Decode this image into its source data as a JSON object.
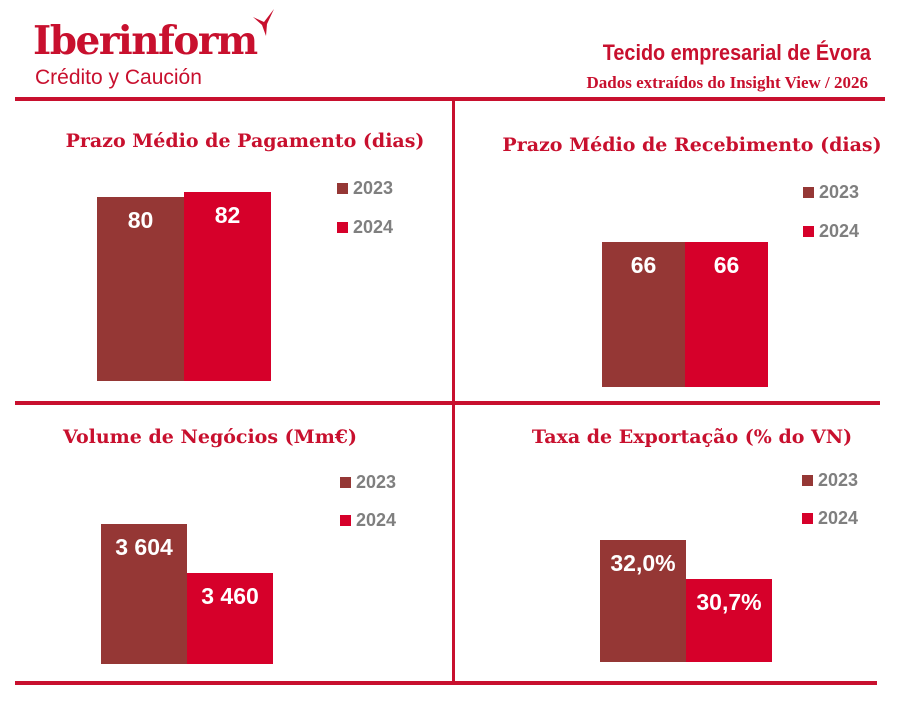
{
  "header": {
    "logo": "Iberinform",
    "logo_sub": "Crédito y Caución",
    "title": "Tecido empresarial de Évora",
    "subtitle": "Dados extraídos do Insight View / 2026"
  },
  "colors": {
    "brand": "#c8102e",
    "s2023": "#953735",
    "s2024": "#d6002a"
  },
  "chart_data": [
    {
      "type": "bar",
      "title": "Prazo Médio de Pagamento (dias)",
      "categories": [
        "2023",
        "2024"
      ],
      "values": [
        80,
        82
      ],
      "labels": [
        "80",
        "82"
      ],
      "ylim": [
        0,
        87
      ],
      "legend": [
        "2023",
        "2024"
      ]
    },
    {
      "type": "bar",
      "title": "Prazo Médio de Recebimento (dias)",
      "categories": [
        "2023",
        "2024"
      ],
      "values": [
        66,
        66
      ],
      "labels": [
        "66",
        "66"
      ],
      "ylim": [
        0,
        91
      ],
      "legend": [
        "2023",
        "2024"
      ]
    },
    {
      "type": "bar",
      "title": "Volume de Negócios (Mm€)",
      "categories": [
        "2023",
        "2024"
      ],
      "values": [
        3604,
        3460
      ],
      "labels": [
        "3 604",
        "3 460"
      ],
      "ylim": [
        3192,
        3780
      ],
      "legend": [
        "2023",
        "2024"
      ]
    },
    {
      "type": "bar",
      "title": "Taxa de Exportação (% do VN)",
      "categories": [
        "2023",
        "2024"
      ],
      "values": [
        32.0,
        30.7
      ],
      "labels": [
        "32,0%",
        "30,7%"
      ],
      "ylim": [
        27.93,
        34.6
      ],
      "legend": [
        "2023",
        "2024"
      ]
    }
  ]
}
